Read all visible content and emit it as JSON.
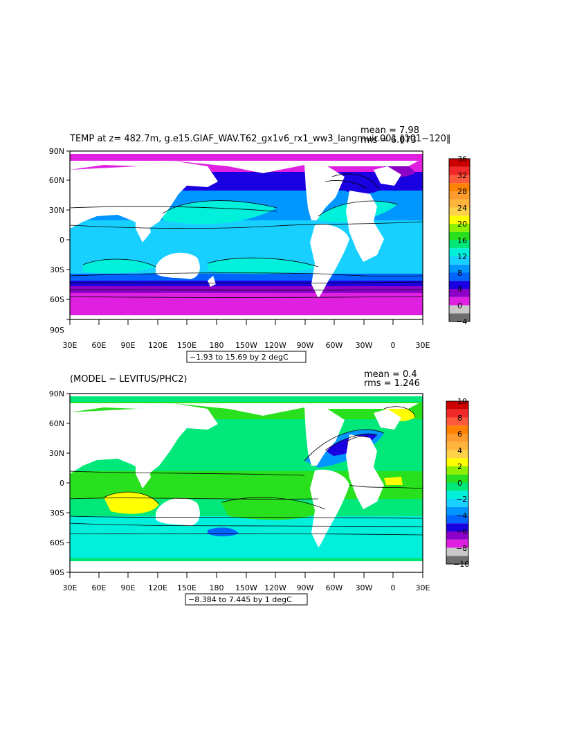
{
  "chart_data": [
    {
      "type": "heatmap",
      "title": "TEMP at z= 482.7m, g.e15.GIAF_WAV.T62_gx1v6_rx1_ww3_langmuir.001 ‖101−120‖",
      "stats": {
        "mean": "mean = 7.98",
        "rms": "rms = 6.073"
      },
      "range_note": "−1.93 to 15.69 by 2 degC",
      "x_ticks": [
        "30E",
        "60E",
        "90E",
        "120E",
        "150E",
        "180",
        "150W",
        "120W",
        "90W",
        "60W",
        "30W",
        "0",
        "30E"
      ],
      "y_ticks": [
        "90N",
        "60N",
        "30N",
        "0",
        "30S",
        "60S",
        "90S"
      ],
      "colorbar": {
        "labels": [
          "36",
          "32",
          "28",
          "24",
          "20",
          "16",
          "12",
          "8",
          "4",
          "0",
          "−4"
        ],
        "levels": [
          -4,
          -2,
          0,
          2,
          4,
          6,
          8,
          10,
          12,
          14,
          16,
          18,
          20,
          22,
          24,
          26,
          28,
          30,
          32,
          34,
          36
        ],
        "colors": [
          "#6e6e6e",
          "#c8c8c8",
          "#e020e0",
          "#8c00c8",
          "#1a00e0",
          "#0064ff",
          "#0096ff",
          "#18d0ff",
          "#00f0dc",
          "#00e87a",
          "#28e01e",
          "#8cf000",
          "#ffff00",
          "#ffd24a",
          "#ffb43c",
          "#ff9b2d",
          "#ff8200",
          "#ff5a3c",
          "#f02828",
          "#cc0000"
        ]
      },
      "xlim": [
        "30E",
        "30E"
      ],
      "ylim": [
        "90S",
        "90N"
      ]
    },
    {
      "type": "heatmap",
      "title": "(MODEL − LEVITUS/PHC2)",
      "stats": {
        "mean": "mean = 0.4",
        "rms": "rms = 1.246"
      },
      "range_note": "−8.384 to 7.445 by 1 degC",
      "x_ticks": [
        "30E",
        "60E",
        "90E",
        "120E",
        "150E",
        "180",
        "150W",
        "120W",
        "90W",
        "60W",
        "30W",
        "0",
        "30E"
      ],
      "y_ticks": [
        "90N",
        "60N",
        "30N",
        "0",
        "30S",
        "60S",
        "90S"
      ],
      "colorbar": {
        "labels": [
          "10",
          "8",
          "6",
          "4",
          "2",
          "0",
          "−2",
          "−4",
          "−6",
          "−8",
          "−10"
        ],
        "levels": [
          -10,
          -9,
          -8,
          -7,
          -6,
          -5,
          -4,
          -3,
          -2,
          -1,
          0,
          1,
          2,
          3,
          4,
          5,
          6,
          7,
          8,
          9,
          10
        ],
        "colors": [
          "#6e6e6e",
          "#c8c8c8",
          "#e020e0",
          "#8c00c8",
          "#1a00e0",
          "#0064ff",
          "#0096ff",
          "#18d0ff",
          "#00f0dc",
          "#00e87a",
          "#28e01e",
          "#8cf000",
          "#ffff00",
          "#ffd24a",
          "#ffb43c",
          "#ff9b2d",
          "#ff8200",
          "#ff5a3c",
          "#f02828",
          "#cc0000"
        ]
      },
      "xlim": [
        "30E",
        "30E"
      ],
      "ylim": [
        "90S",
        "90N"
      ]
    }
  ],
  "colors": {
    "land": "#ffffff",
    "frame": "#000000"
  }
}
